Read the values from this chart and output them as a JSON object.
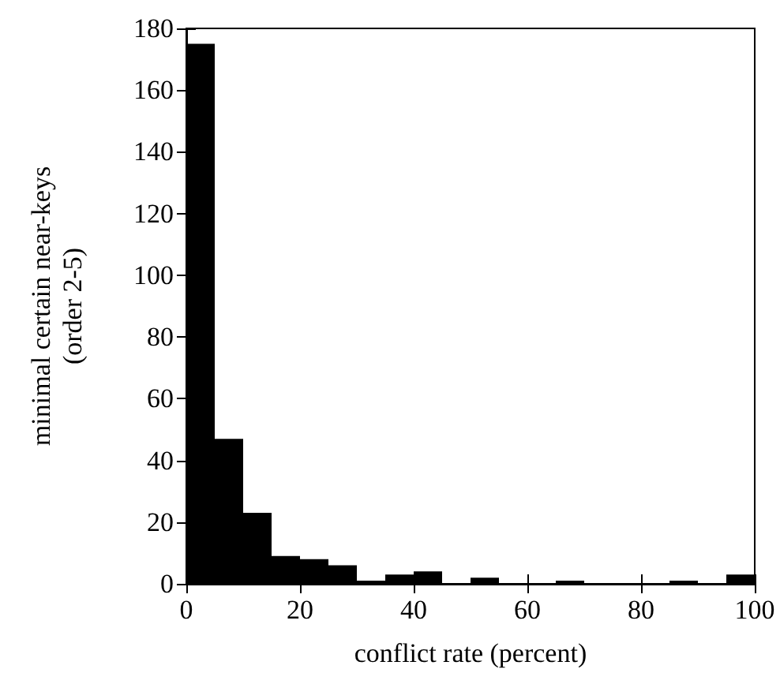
{
  "chart_data": {
    "type": "histogram",
    "xlabel": "conflict rate (percent)",
    "ylabel": "minimal certain near-keys\n(order 2-5)",
    "bins": [
      0,
      5,
      10,
      15,
      20,
      25,
      30,
      35,
      40,
      45,
      50,
      55,
      60,
      65,
      70,
      75,
      80,
      85,
      90,
      95,
      100
    ],
    "values": [
      175,
      47,
      23,
      9,
      8,
      6,
      1,
      3,
      4,
      0,
      2,
      0,
      0,
      1,
      0,
      0,
      0,
      1,
      0,
      3
    ],
    "color": "#000000",
    "xlim": [
      0,
      100
    ],
    "xticks": [
      0,
      20,
      40,
      60,
      80,
      100
    ],
    "ylim": [
      0,
      180
    ],
    "yticks": [
      0,
      20,
      40,
      60,
      80,
      100,
      120,
      140,
      160,
      180
    ],
    "grid": false
  }
}
